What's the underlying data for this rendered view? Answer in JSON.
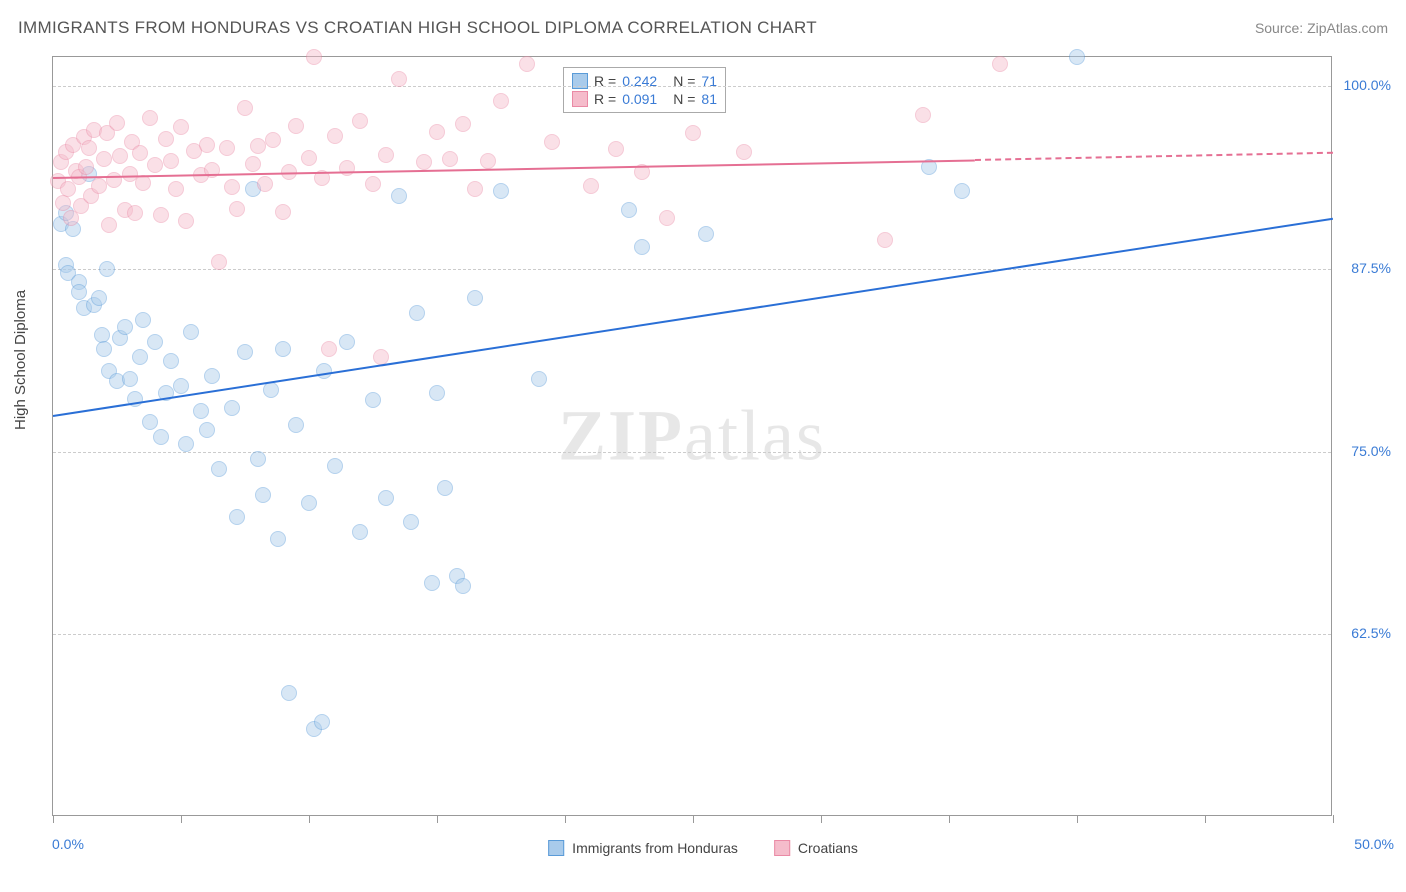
{
  "title": "IMMIGRANTS FROM HONDURAS VS CROATIAN HIGH SCHOOL DIPLOMA CORRELATION CHART",
  "source": "Source: ZipAtlas.com",
  "ylabel": "High School Diploma",
  "watermark_a": "ZIP",
  "watermark_b": "atlas",
  "chart": {
    "type": "scatter",
    "xlim": [
      0,
      50
    ],
    "ylim": [
      50,
      102
    ],
    "xtick_labels": [
      "0.0%",
      "50.0%"
    ],
    "ytick_positions": [
      62.5,
      75.0,
      87.5,
      100.0
    ],
    "ytick_labels": [
      "62.5%",
      "75.0%",
      "87.5%",
      "100.0%"
    ],
    "xtick_positions": [
      0,
      5,
      10,
      15,
      20,
      25,
      30,
      35,
      40,
      45,
      50
    ],
    "grid_color": "#cccccc",
    "axis_color": "#999999",
    "background": "#ffffff",
    "label_color": "#3a7bd5",
    "point_radius": 8,
    "point_opacity": 0.45,
    "series": [
      {
        "name": "Immigrants from Honduras",
        "color_fill": "#a9cbeb",
        "color_stroke": "#5a9bd8",
        "R": "0.242",
        "N": "71",
        "trend": {
          "x1": 0,
          "y1": 77.5,
          "x2": 50,
          "y2": 91.0,
          "color": "#2a6fd6",
          "style": "solid"
        },
        "points": [
          [
            0.3,
            90.6
          ],
          [
            0.5,
            91.3
          ],
          [
            0.5,
            87.8
          ],
          [
            0.6,
            87.2
          ],
          [
            0.8,
            90.2
          ],
          [
            1.0,
            86.6
          ],
          [
            1.0,
            85.9
          ],
          [
            1.2,
            84.8
          ],
          [
            1.4,
            94.0
          ],
          [
            1.6,
            85.0
          ],
          [
            1.8,
            85.5
          ],
          [
            1.9,
            83.0
          ],
          [
            2.0,
            82.0
          ],
          [
            2.1,
            87.5
          ],
          [
            2.2,
            80.5
          ],
          [
            2.5,
            79.8
          ],
          [
            2.6,
            82.8
          ],
          [
            2.8,
            83.5
          ],
          [
            3.0,
            80.0
          ],
          [
            3.2,
            78.6
          ],
          [
            3.4,
            81.5
          ],
          [
            3.5,
            84.0
          ],
          [
            3.8,
            77.0
          ],
          [
            4.0,
            82.5
          ],
          [
            4.2,
            76.0
          ],
          [
            4.4,
            79.0
          ],
          [
            4.6,
            81.2
          ],
          [
            5.0,
            79.5
          ],
          [
            5.2,
            75.5
          ],
          [
            5.4,
            83.2
          ],
          [
            5.8,
            77.8
          ],
          [
            6.0,
            76.5
          ],
          [
            6.2,
            80.2
          ],
          [
            6.5,
            73.8
          ],
          [
            7.0,
            78.0
          ],
          [
            7.2,
            70.5
          ],
          [
            7.5,
            81.8
          ],
          [
            7.8,
            93.0
          ],
          [
            8.0,
            74.5
          ],
          [
            8.2,
            72.0
          ],
          [
            8.5,
            79.2
          ],
          [
            8.8,
            69.0
          ],
          [
            9.0,
            82.0
          ],
          [
            9.2,
            58.5
          ],
          [
            9.5,
            76.8
          ],
          [
            10.0,
            71.5
          ],
          [
            10.2,
            56.0
          ],
          [
            10.5,
            56.5
          ],
          [
            10.6,
            80.5
          ],
          [
            11.0,
            74.0
          ],
          [
            11.5,
            82.5
          ],
          [
            12.0,
            69.5
          ],
          [
            12.5,
            78.5
          ],
          [
            13.0,
            71.8
          ],
          [
            13.5,
            92.5
          ],
          [
            14.0,
            70.2
          ],
          [
            14.2,
            84.5
          ],
          [
            14.8,
            66.0
          ],
          [
            15.0,
            79.0
          ],
          [
            15.3,
            72.5
          ],
          [
            15.8,
            66.5
          ],
          [
            16.0,
            65.8
          ],
          [
            16.5,
            85.5
          ],
          [
            17.5,
            92.8
          ],
          [
            19.0,
            80.0
          ],
          [
            22.5,
            91.5
          ],
          [
            23.0,
            89.0
          ],
          [
            25.5,
            89.9
          ],
          [
            34.2,
            94.5
          ],
          [
            35.5,
            92.8
          ],
          [
            40.0,
            102.0
          ]
        ]
      },
      {
        "name": "Croatians",
        "color_fill": "#f5bccb",
        "color_stroke": "#ea8aa5",
        "R": "0.091",
        "N": "81",
        "trend": {
          "x1": 0,
          "y1": 93.8,
          "x2": 36,
          "y2": 95.0,
          "x2_dash": 50,
          "y2_dash": 95.5,
          "color": "#e56f93",
          "style": "solid"
        },
        "points": [
          [
            0.2,
            93.5
          ],
          [
            0.3,
            94.8
          ],
          [
            0.4,
            92.0
          ],
          [
            0.5,
            95.5
          ],
          [
            0.6,
            93.0
          ],
          [
            0.7,
            91.0
          ],
          [
            0.8,
            96.0
          ],
          [
            0.9,
            94.2
          ],
          [
            1.0,
            93.8
          ],
          [
            1.1,
            91.8
          ],
          [
            1.2,
            96.5
          ],
          [
            1.3,
            94.5
          ],
          [
            1.4,
            95.8
          ],
          [
            1.5,
            92.5
          ],
          [
            1.6,
            97.0
          ],
          [
            1.8,
            93.2
          ],
          [
            2.0,
            95.0
          ],
          [
            2.1,
            96.8
          ],
          [
            2.2,
            90.5
          ],
          [
            2.4,
            93.6
          ],
          [
            2.5,
            97.5
          ],
          [
            2.6,
            95.2
          ],
          [
            2.8,
            91.5
          ],
          [
            3.0,
            94.0
          ],
          [
            3.1,
            96.2
          ],
          [
            3.2,
            91.3
          ],
          [
            3.4,
            95.4
          ],
          [
            3.5,
            93.4
          ],
          [
            3.8,
            97.8
          ],
          [
            4.0,
            94.6
          ],
          [
            4.2,
            91.2
          ],
          [
            4.4,
            96.4
          ],
          [
            4.6,
            94.9
          ],
          [
            4.8,
            93.0
          ],
          [
            5.0,
            97.2
          ],
          [
            5.2,
            90.8
          ],
          [
            5.5,
            95.6
          ],
          [
            5.8,
            93.9
          ],
          [
            6.0,
            96.0
          ],
          [
            6.2,
            94.3
          ],
          [
            6.5,
            88.0
          ],
          [
            6.8,
            95.8
          ],
          [
            7.0,
            93.1
          ],
          [
            7.2,
            91.6
          ],
          [
            7.5,
            98.5
          ],
          [
            7.8,
            94.7
          ],
          [
            8.0,
            95.9
          ],
          [
            8.3,
            93.3
          ],
          [
            8.6,
            96.3
          ],
          [
            9.0,
            91.4
          ],
          [
            9.2,
            94.1
          ],
          [
            9.5,
            97.3
          ],
          [
            10.0,
            95.1
          ],
          [
            10.2,
            102.0
          ],
          [
            10.5,
            93.7
          ],
          [
            10.8,
            82.0
          ],
          [
            11.0,
            96.6
          ],
          [
            11.5,
            94.4
          ],
          [
            12.0,
            97.6
          ],
          [
            12.5,
            93.3
          ],
          [
            12.8,
            81.5
          ],
          [
            13.0,
            95.3
          ],
          [
            13.5,
            100.5
          ],
          [
            14.5,
            94.8
          ],
          [
            15.0,
            96.9
          ],
          [
            15.5,
            95.0
          ],
          [
            16.0,
            97.4
          ],
          [
            16.5,
            93.0
          ],
          [
            17.0,
            94.9
          ],
          [
            17.5,
            99.0
          ],
          [
            18.5,
            101.5
          ],
          [
            19.5,
            96.2
          ],
          [
            21.0,
            93.2
          ],
          [
            22.0,
            95.7
          ],
          [
            23.0,
            94.1
          ],
          [
            24.0,
            91.0
          ],
          [
            25.0,
            96.8
          ],
          [
            27.0,
            95.5
          ],
          [
            32.5,
            89.5
          ],
          [
            34.0,
            98.0
          ],
          [
            37.0,
            101.5
          ]
        ]
      }
    ]
  },
  "legend_bottom": [
    {
      "label": "Immigrants from Honduras",
      "fill": "#a9cbeb",
      "stroke": "#5a9bd8"
    },
    {
      "label": "Croatians",
      "fill": "#f5bccb",
      "stroke": "#ea8aa5"
    }
  ]
}
